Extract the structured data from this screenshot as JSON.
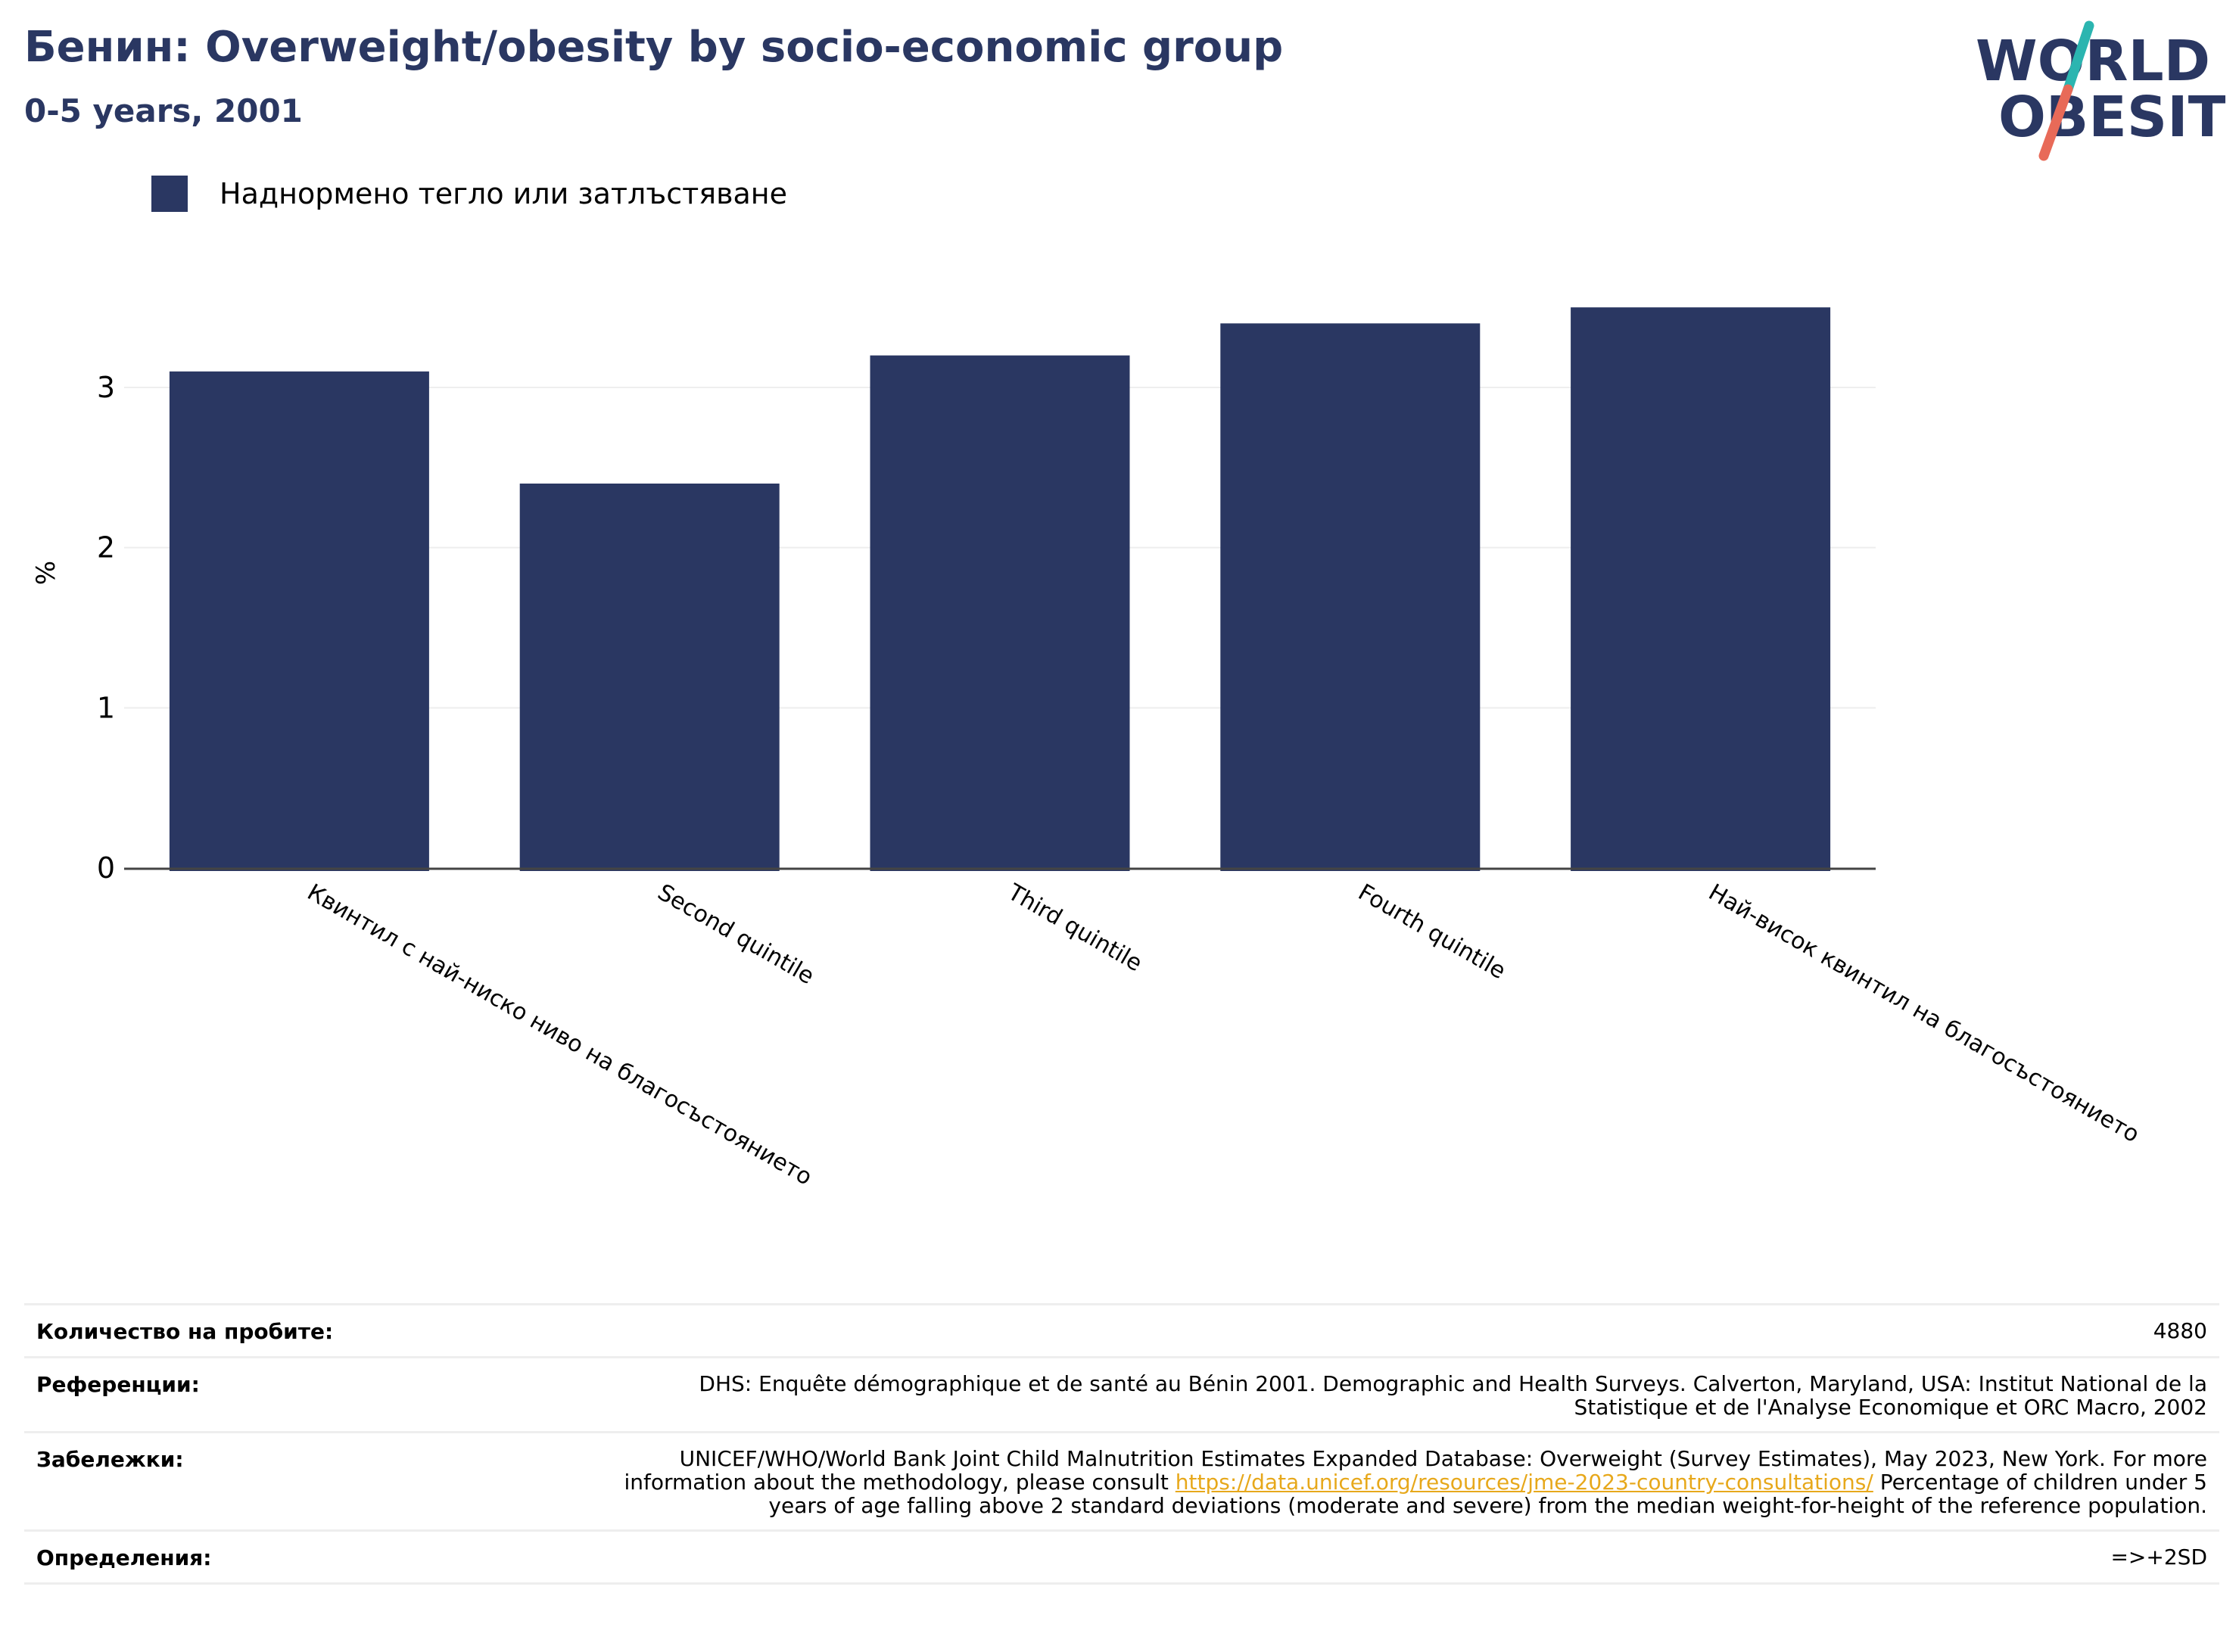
{
  "header": {
    "title": "Бенин: Overweight/obesity by socio-economic group",
    "subtitle": "0-5 years, 2001"
  },
  "logo": {
    "line1": "WORLD",
    "line2": "OBESITY"
  },
  "colors": {
    "bar": "#2a3762",
    "title": "#2a3762",
    "link": "#e7a81b",
    "logo_teal": "#2bb5b0",
    "logo_red": "#e86a58",
    "grid": "#eeeeee",
    "axis": "#444444"
  },
  "chart_data": {
    "type": "bar",
    "categories": [
      "Квинтил с най-ниско ниво на благосъстоянието",
      "Second quintile",
      "Third quintile",
      "Fourth quintile",
      "Най-висок квинтил на благосъстоянието"
    ],
    "series": [
      {
        "name": "Наднормено тегло или затлъстяване",
        "values": [
          3.1,
          2.4,
          3.2,
          3.4,
          3.5
        ]
      }
    ],
    "ylabel": "%",
    "ylim": [
      0,
      3.9
    ],
    "yticks": [
      0,
      1,
      2,
      3
    ],
    "grid": true,
    "legend": "top-left"
  },
  "meta": {
    "samples_label": "Количество на пробите:",
    "samples_value": "4880",
    "references_label": "Референции:",
    "references_value": "DHS: Enquête démographique et de santé au Bénin 2001. Demographic and Health Surveys. Calverton, Maryland, USA: Institut National de la Statistique et de l'Analyse Economique et ORC Macro, 2002",
    "notes_label": "Забележки:",
    "notes_pre": "UNICEF/WHO/World Bank Joint Child Malnutrition Estimates Expanded Database: Overweight (Survey Estimates), May 2023, New York. For more information about the methodology, please consult ",
    "notes_link": "https://data.unicef.org/resources/jme-2023-country-consultations/",
    "notes_post": " Percentage of children under 5 years of age falling above 2 standard deviations (moderate and severe) from the median weight-for-height of the reference population.",
    "definitions_label": "Определения:",
    "definitions_value": "=>+2SD"
  }
}
